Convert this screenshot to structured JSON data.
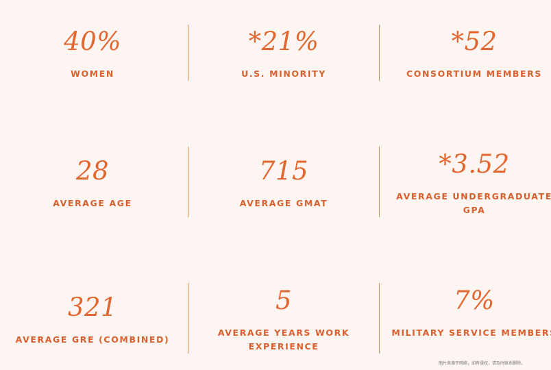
{
  "stats": [
    {
      "value": "40%",
      "label": "WOMEN"
    },
    {
      "value": "*21%",
      "label": "U.S. MINORITY"
    },
    {
      "value": "*52",
      "label": "CONSORTIUM MEMBERS"
    },
    {
      "value": "28",
      "label": "AVERAGE AGE"
    },
    {
      "value": "715",
      "label": "AVERAGE GMAT"
    },
    {
      "value": "*3.52",
      "label": "AVERAGE UNDERGRADUATE GPA"
    },
    {
      "value": "321",
      "label": "AVERAGE GRE (COMBINED)"
    },
    {
      "value": "5",
      "label": "AVERAGE YEARS WORK EXPERIENCE"
    },
    {
      "value": "7%",
      "label": "MILITARY SERVICE MEMBERS"
    }
  ],
  "watermark": "图片来源于网络，如有侵权，请及时联系删除。",
  "colors": {
    "background": "#fdf5f1",
    "accent": "#e2662f",
    "divider": "#d4914f"
  }
}
